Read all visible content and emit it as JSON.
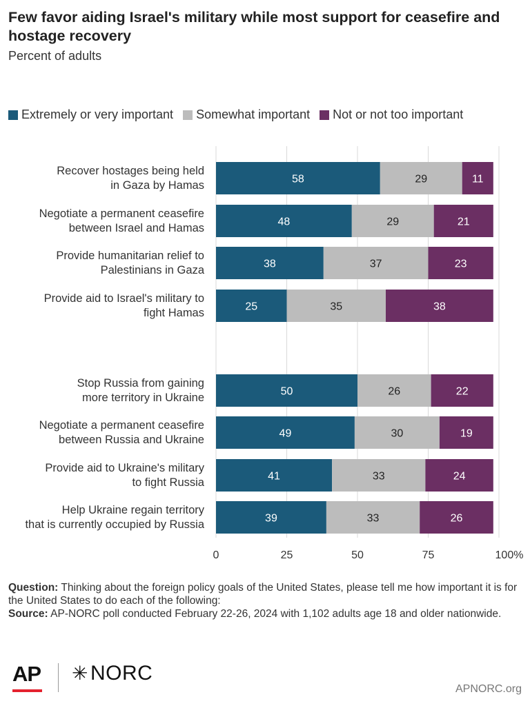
{
  "header": {
    "title": "Few favor aiding Israel's military while most support for ceasefire and hostage recovery",
    "subtitle": "Percent of adults"
  },
  "legend": [
    {
      "label": "Extremely or very important",
      "color": "#1b5a7a"
    },
    {
      "label": "Somewhat important",
      "color": "#bcbcbc"
    },
    {
      "label": "Not or not too important",
      "color": "#6b2f63"
    }
  ],
  "chart_data": {
    "type": "bar",
    "orientation": "horizontal",
    "stacked": true,
    "categories": [
      [
        "Recover hostages being held",
        "in Gaza by Hamas"
      ],
      [
        "Negotiate a permanent ceasefire",
        "between Israel and Hamas"
      ],
      [
        "Provide humanitarian relief to",
        "Palestinians in Gaza"
      ],
      [
        "Provide aid to Israel's military to",
        "fight Hamas"
      ],
      [
        "Stop Russia from gaining",
        "more territory in Ukraine"
      ],
      [
        "Negotiate a permanent ceasefire",
        "between Russia and Ukraine"
      ],
      [
        "Provide aid to Ukraine's military",
        "to fight Russia"
      ],
      [
        "Help Ukraine regain territory",
        "that is currently occupied by Russia"
      ]
    ],
    "series": [
      {
        "name": "Extremely or very important",
        "color": "#1b5a7a",
        "label_color": "#ffffff",
        "values": [
          58,
          48,
          38,
          25,
          50,
          49,
          41,
          39
        ]
      },
      {
        "name": "Somewhat important",
        "color": "#bcbcbc",
        "label_color": "#222222",
        "values": [
          29,
          29,
          37,
          35,
          26,
          30,
          33,
          33
        ]
      },
      {
        "name": "Not or not too important",
        "color": "#6b2f63",
        "label_color": "#ffffff",
        "values": [
          11,
          21,
          23,
          38,
          22,
          19,
          24,
          26
        ]
      }
    ],
    "xlim": [
      0,
      100
    ],
    "xticks": [
      "0",
      "25",
      "50",
      "75",
      "100%"
    ],
    "grid": true
  },
  "notes": {
    "question_label": "Question:",
    "question_text": " Thinking about the foreign policy goals of the United States, please tell me how important it is for the United States to do each of the following:",
    "source_label": "Source:",
    "source_text": " AP-NORC poll conducted February 22-26, 2024 with 1,102 adults age 18 and older nationwide."
  },
  "footer": {
    "logo_ap": "AP",
    "logo_norc": "NORC",
    "site": "APNORC.org"
  }
}
